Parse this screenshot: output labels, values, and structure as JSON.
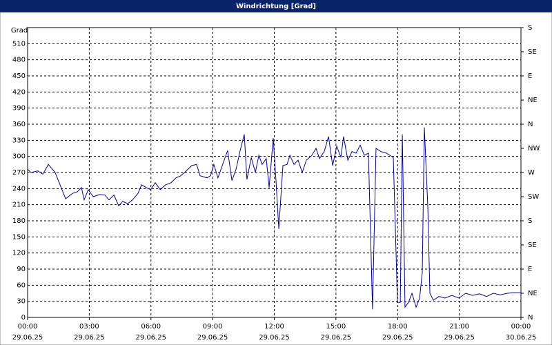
{
  "chart_data": {
    "type": "line",
    "title": "Windrichtung [Grad]",
    "ylabel": "Grad",
    "xlim": [
      0,
      24
    ],
    "ylim": [
      0,
      540
    ],
    "y2lim": [
      0,
      540
    ],
    "grid": true,
    "xticks": [
      {
        "value": 0,
        "label": "00:00",
        "date": "29.06.25"
      },
      {
        "value": 3,
        "label": "03:00",
        "date": "29.06.25"
      },
      {
        "value": 6,
        "label": "06:00",
        "date": "29.06.25"
      },
      {
        "value": 9,
        "label": "09:00",
        "date": "29.06.25"
      },
      {
        "value": 12,
        "label": "12:00",
        "date": "29.06.25"
      },
      {
        "value": 15,
        "label": "15:00",
        "date": "29.06.25"
      },
      {
        "value": 18,
        "label": "18:00",
        "date": "29.06.25"
      },
      {
        "value": 21,
        "label": "21:00",
        "date": "29.06.25"
      },
      {
        "value": 24,
        "label": "00:00",
        "date": "30.06.25"
      }
    ],
    "yticks": [
      0,
      30,
      60,
      90,
      120,
      150,
      180,
      210,
      240,
      270,
      300,
      330,
      360,
      390,
      420,
      450,
      480,
      510
    ],
    "y2ticks": [
      {
        "value": 0,
        "label": "N"
      },
      {
        "value": 45,
        "label": "NE"
      },
      {
        "value": 90,
        "label": "E"
      },
      {
        "value": 135,
        "label": "SE"
      },
      {
        "value": 180,
        "label": "S"
      },
      {
        "value": 225,
        "label": "SW"
      },
      {
        "value": 270,
        "label": "W"
      },
      {
        "value": 315,
        "label": "NW"
      },
      {
        "value": 360,
        "label": "N"
      },
      {
        "value": 405,
        "label": "NE"
      },
      {
        "value": 450,
        "label": "E"
      },
      {
        "value": 495,
        "label": "SE"
      },
      {
        "value": 540,
        "label": "S"
      }
    ],
    "x": [
      0,
      0.17,
      0.5,
      0.74,
      1.01,
      1.34,
      1.61,
      1.85,
      2.18,
      2.42,
      2.62,
      2.75,
      2.95,
      3.19,
      3.52,
      3.76,
      3.96,
      4.2,
      4.43,
      4.63,
      4.87,
      5.1,
      5.37,
      5.54,
      5.77,
      5.98,
      6.21,
      6.45,
      6.71,
      6.98,
      7.22,
      7.45,
      7.72,
      7.99,
      8.22,
      8.39,
      8.73,
      8.9,
      9.06,
      9.26,
      9.47,
      9.73,
      9.94,
      10.14,
      10.34,
      10.54,
      10.67,
      10.88,
      11.08,
      11.25,
      11.41,
      11.61,
      11.75,
      11.95,
      12.08,
      12.22,
      12.42,
      12.62,
      12.76,
      12.96,
      13.16,
      13.36,
      13.56,
      13.83,
      14.03,
      14.2,
      14.43,
      14.64,
      14.84,
      15.04,
      15.24,
      15.37,
      15.58,
      15.78,
      15.98,
      16.18,
      16.38,
      16.58,
      16.78,
      16.95,
      17.19,
      17.46,
      17.79,
      17.93,
      17.99,
      18.13,
      18.23,
      18.36,
      18.53,
      18.7,
      18.9,
      19.07,
      19.2,
      19.3,
      19.47,
      19.57,
      19.74,
      20.01,
      20.31,
      20.64,
      20.98,
      21.32,
      21.65,
      21.99,
      22.32,
      22.66,
      22.99,
      23.33,
      23.67,
      24
    ],
    "series": [
      {
        "name": "Windrichtung",
        "color": "#0000a0",
        "values": [
          276,
          270,
          273,
          267,
          285,
          270,
          244,
          221,
          231,
          234,
          242,
          219,
          238,
          225,
          229,
          228,
          219,
          228,
          208,
          216,
          212,
          219,
          231,
          247,
          242,
          238,
          251,
          238,
          247,
          251,
          260,
          264,
          273,
          283,
          285,
          264,
          260,
          264,
          285,
          260,
          283,
          311,
          255,
          276,
          311,
          341,
          257,
          298,
          270,
          302,
          285,
          296,
          242,
          334,
          257,
          165,
          283,
          285,
          302,
          285,
          293,
          270,
          293,
          302,
          315,
          296,
          309,
          337,
          283,
          319,
          298,
          337,
          293,
          309,
          306,
          321,
          302,
          306,
          15,
          315,
          309,
          306,
          298,
          113,
          28,
          28,
          341,
          19,
          28,
          45,
          19,
          36,
          84,
          354,
          206,
          45,
          32,
          39,
          36,
          41,
          36,
          45,
          41,
          44,
          39,
          45,
          42,
          45,
          46,
          46
        ]
      }
    ]
  }
}
